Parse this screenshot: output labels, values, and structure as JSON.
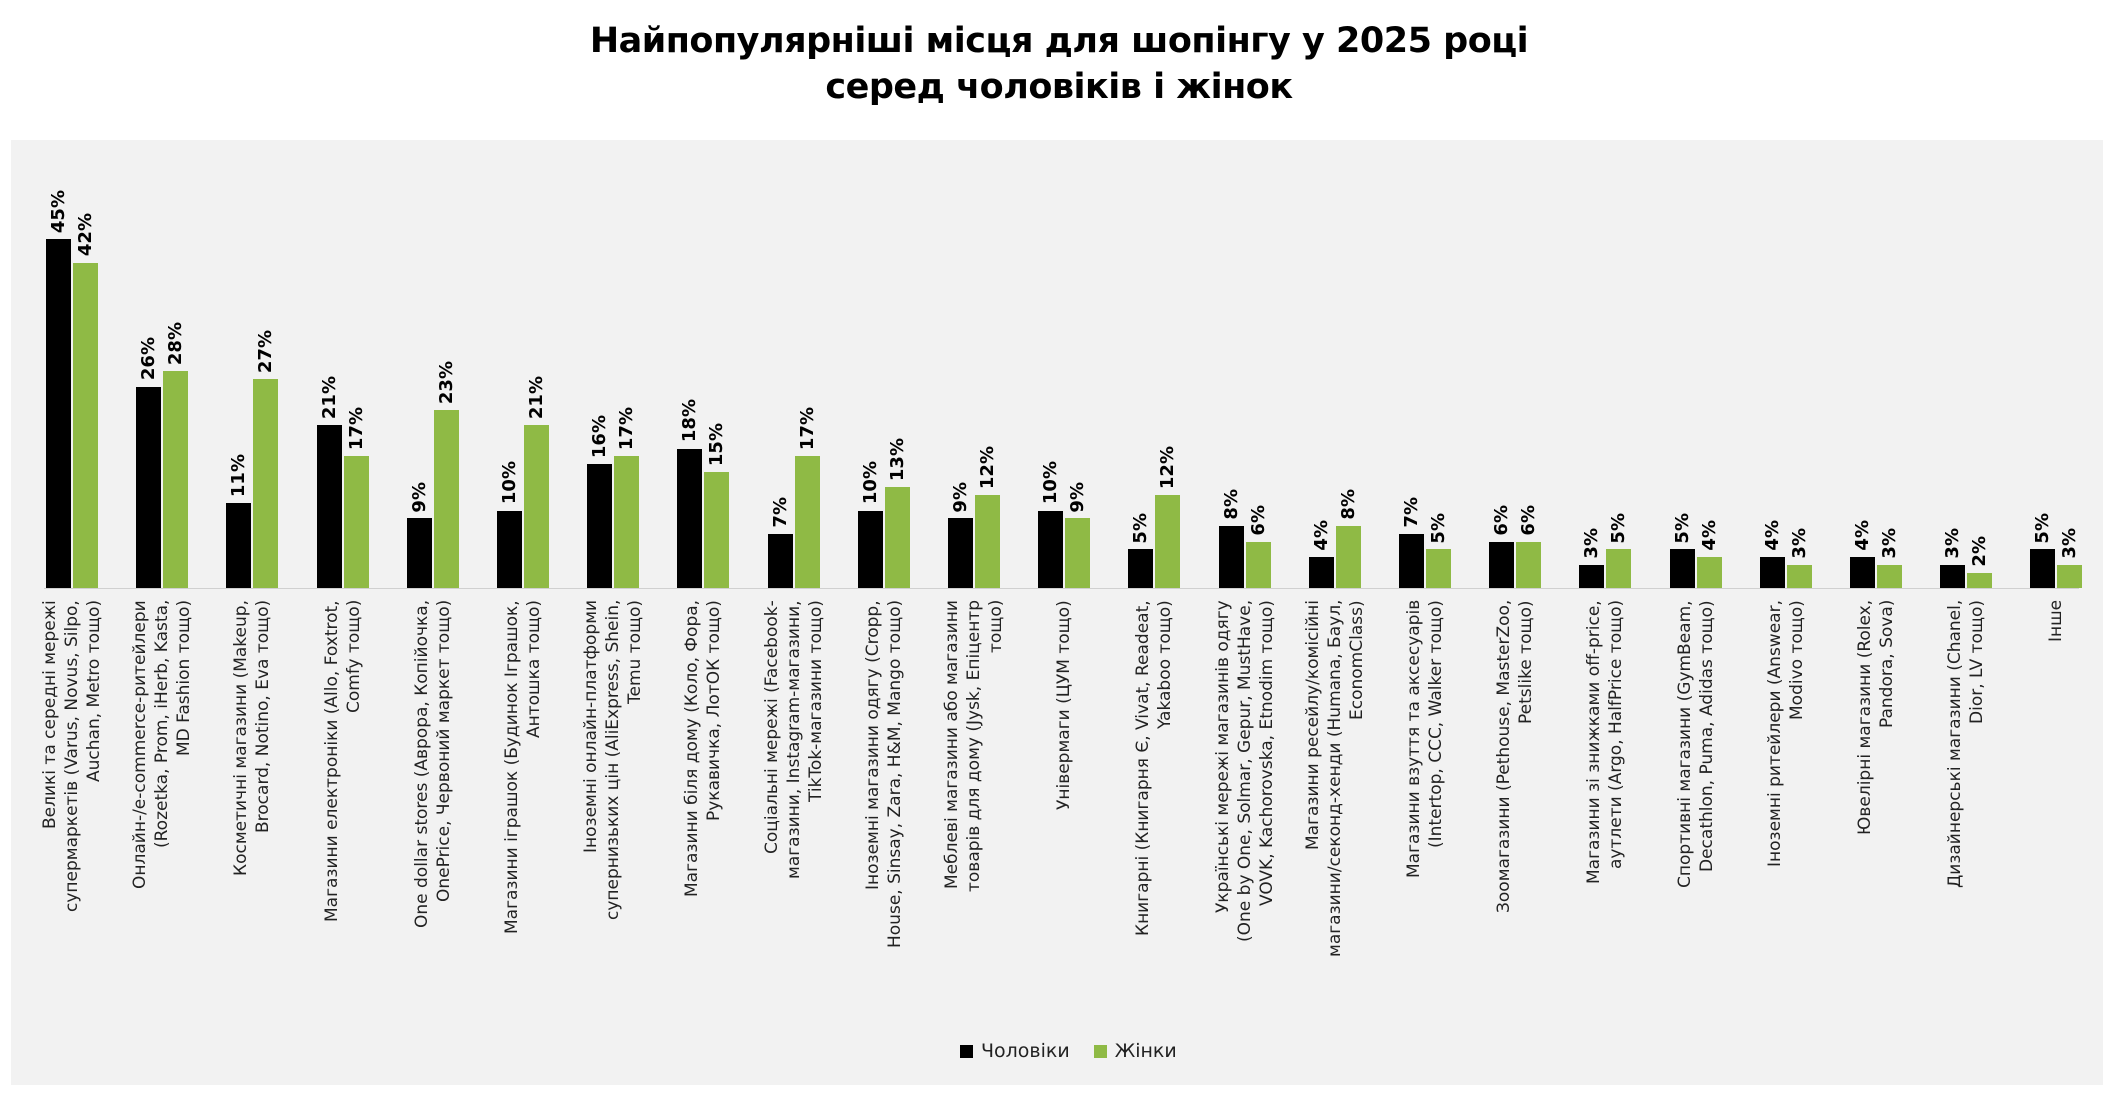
{
  "chart_data": {
    "type": "bar",
    "title": "Найпопулярніші місця для шопінгу у 2025 році\nсеред чоловіків і жінок",
    "xlabel": "",
    "ylabel": "",
    "ylim": [
      0,
      50
    ],
    "grid": false,
    "legend": "bottom",
    "categories": [
      "Великі та середні мережі\nсупермаркетів (Varus, Novus, Silpo,\nAuchan, Metro тощо)",
      "Онлайн-/е-commerce-ритейлери\n(Rozetka, Prom, iHerb, Kasta,\nMD Fashion тощо)",
      "Косметичні магазини (Makeup,\nBrocard, Notino, Eva тощо)",
      "Магазини електроніки (Allo, Foxtrot,\nComfy тощо)",
      "One dollar stores (Аврора, Копійочка,\nOnePrice, Червоний маркет тощо)",
      "Магазини іграшок (Будинок Іграшок,\nАнтошка тощо)",
      "Іноземні онлайн-платформи\nсупернизьких цін (AliExpress, Shein,\nTemu тощо)",
      "Магазини біля дому (Коло, Фора,\nРукавичка, ЛотОК тощо)",
      "Соціальні мережі (Facebook-\nмагазини, Instagram-магазини,\nTikTok-магазини тощо)",
      "Іноземні магазини одягу (Cropp,\nHouse, Sinsay, Zara, H&M, Mango тощо)",
      "Меблеві магазини або магазини\nтоварів для дому (Jysk, Епіцентр\nтощо)",
      "Універмаги (ЦУМ тощо)",
      "Книгарні (Книгарня Є, Vivat, Readeat,\nYakaboo тощо)",
      "Українські мережі магазинів одягу\n(One by One, Solmar, Gepur, MustHave,\nVOVK, Kachorovska, Etnodim тощо)",
      "Магазини ресейлу/комісійні\nмагазини/секонд-хенди (Humana, Баул,\nEconomClass)",
      "Магазини взуття та аксесуарів\n(Intertop, CCC, Walker тощо)",
      "Зоомагазини (Pethouse, MasterZoo,\nPetslike тощо)",
      "Магазини зі знижками off-price,\nаутлети (Argo, HalfPrice тощо)",
      "Спортивні магазини (GymBeam,\nDecathlon, Puma, Adidas тощо)",
      "Іноземні ритейлери (Answear,\nModivo тощо)",
      "Ювелірні магазини (Rolex,\nPandora, Sova)",
      "Дизайнерські магазини (Chanel,\nDior, LV тощо)",
      "Інше"
    ],
    "series": [
      {
        "name": "Чоловіки",
        "color": "#000000",
        "values": [
          45,
          26,
          11,
          21,
          9,
          10,
          16,
          18,
          7,
          10,
          9,
          10,
          5,
          8,
          4,
          7,
          6,
          3,
          5,
          4,
          4,
          3,
          5
        ],
        "labels": [
          "45%",
          "26%",
          "11%",
          "21%",
          "9%",
          "10%",
          "16%",
          "18%",
          "7%",
          "10%",
          "9%",
          "10%",
          "5%",
          "8%",
          "4%",
          "7%",
          "6%",
          "3%",
          "5%",
          "4%",
          "4%",
          "3%",
          "5%"
        ]
      },
      {
        "name": "Жінки",
        "color": "#8fba45",
        "values": [
          42,
          28,
          27,
          17,
          23,
          21,
          17,
          15,
          17,
          13,
          12,
          9,
          12,
          6,
          8,
          5,
          6,
          5,
          4,
          3,
          3,
          2,
          3
        ],
        "labels": [
          "42%",
          "28%",
          "27%",
          "17%",
          "23%",
          "21%",
          "17%",
          "15%",
          "17%",
          "13%",
          "12%",
          "9%",
          "12%",
          "6%",
          "8%",
          "5%",
          "6%",
          "5%",
          "4%",
          "3%",
          "3%",
          "2%",
          "3%"
        ]
      }
    ]
  }
}
